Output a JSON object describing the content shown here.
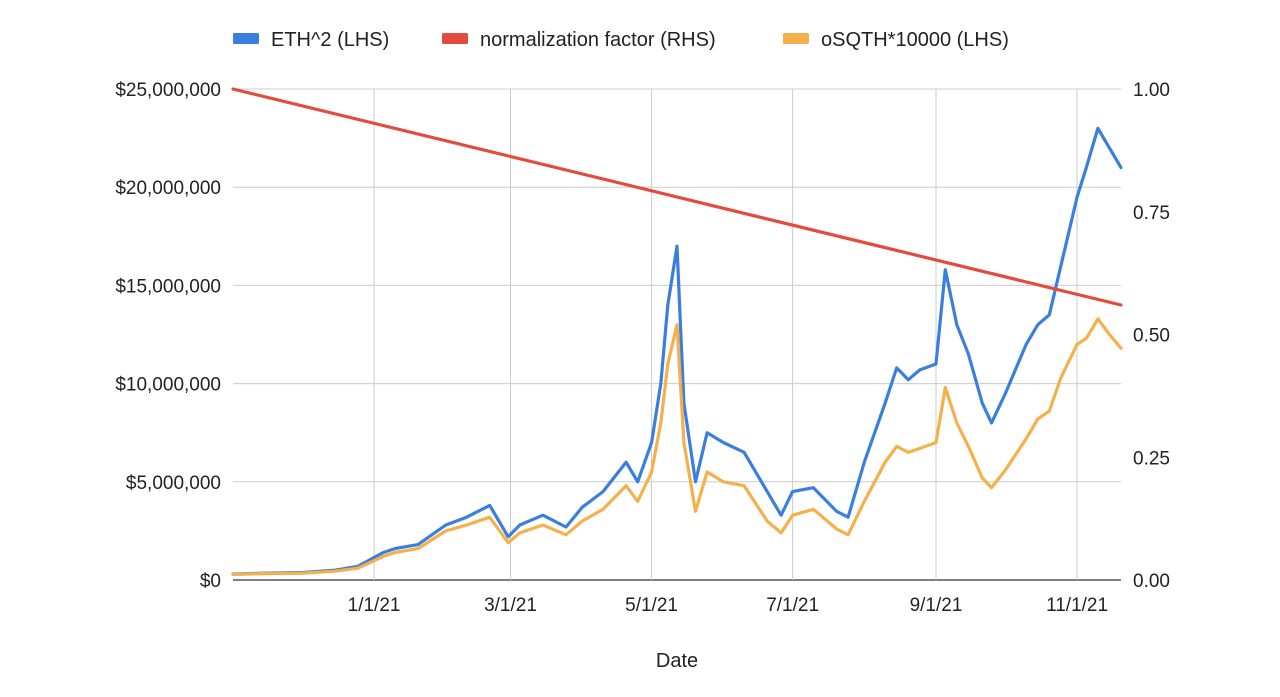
{
  "chart_data": {
    "type": "line",
    "xlabel": "Date",
    "x_range": [
      "2020-11-01",
      "2021-11-20"
    ],
    "x_ticks": [
      {
        "date": "2021-01-01",
        "label": "1/1/21"
      },
      {
        "date": "2021-03-01",
        "label": "3/1/21"
      },
      {
        "date": "2021-05-01",
        "label": "5/1/21"
      },
      {
        "date": "2021-07-01",
        "label": "7/1/21"
      },
      {
        "date": "2021-09-01",
        "label": "9/1/21"
      },
      {
        "date": "2021-11-01",
        "label": "11/1/21"
      }
    ],
    "y_left": {
      "range": [
        0,
        25000000
      ],
      "ticks": [
        0,
        5000000,
        10000000,
        15000000,
        20000000,
        25000000
      ],
      "tick_labels": [
        "$0",
        "$5,000,000",
        "$10,000,000",
        "$15,000,000",
        "$20,000,000",
        "$25,000,000"
      ]
    },
    "y_right": {
      "range": [
        0,
        1
      ],
      "ticks": [
        0,
        0.25,
        0.5,
        0.75,
        1
      ],
      "tick_labels": [
        "0.00",
        "0.25",
        "0.50",
        "0.75",
        "1.00"
      ]
    },
    "grid": true,
    "legend_position": "top",
    "series": [
      {
        "name": "ETH^2 (LHS)",
        "axis": "left",
        "color": "#3a7fdf",
        "x": [
          "2020-11-01",
          "2020-11-15",
          "2020-12-01",
          "2020-12-15",
          "2020-12-25",
          "2021-01-05",
          "2021-01-10",
          "2021-01-20",
          "2021-02-01",
          "2021-02-10",
          "2021-02-20",
          "2021-02-28",
          "2021-03-05",
          "2021-03-15",
          "2021-03-25",
          "2021-04-01",
          "2021-04-10",
          "2021-04-20",
          "2021-04-25",
          "2021-05-01",
          "2021-05-05",
          "2021-05-08",
          "2021-05-12",
          "2021-05-15",
          "2021-05-20",
          "2021-05-25",
          "2021-06-01",
          "2021-06-10",
          "2021-06-20",
          "2021-06-26",
          "2021-07-01",
          "2021-07-10",
          "2021-07-20",
          "2021-07-25",
          "2021-08-01",
          "2021-08-10",
          "2021-08-15",
          "2021-08-20",
          "2021-08-25",
          "2021-09-01",
          "2021-09-05",
          "2021-09-10",
          "2021-09-15",
          "2021-09-21",
          "2021-09-25",
          "2021-10-01",
          "2021-10-10",
          "2021-10-15",
          "2021-10-20",
          "2021-10-25",
          "2021-11-01",
          "2021-11-05",
          "2021-11-10",
          "2021-11-15",
          "2021-11-20"
        ],
        "y": [
          300000,
          350000,
          380000,
          500000,
          700000,
          1400000,
          1600000,
          1800000,
          2800000,
          3200000,
          3800000,
          2200000,
          2800000,
          3300000,
          2700000,
          3700000,
          4500000,
          6000000,
          5000000,
          7000000,
          10000000,
          14000000,
          17000000,
          9000000,
          5000000,
          7500000,
          7000000,
          6500000,
          4500000,
          3300000,
          4500000,
          4700000,
          3500000,
          3200000,
          6000000,
          9000000,
          10800000,
          10200000,
          10700000,
          11000000,
          15800000,
          13000000,
          11500000,
          9000000,
          8000000,
          9500000,
          12000000,
          13000000,
          13500000,
          16000000,
          19500000,
          21000000,
          23000000,
          22000000,
          21000000
        ]
      },
      {
        "name": "normalization factor (RHS)",
        "axis": "right",
        "color": "#e34c3c",
        "x": [
          "2020-11-01",
          "2021-11-20"
        ],
        "y": [
          1.0,
          0.56
        ]
      },
      {
        "name": "oSQTH*10000 (LHS)",
        "axis": "left",
        "color": "#f5b04b",
        "x": [
          "2020-11-01",
          "2020-11-15",
          "2020-12-01",
          "2020-12-15",
          "2020-12-25",
          "2021-01-05",
          "2021-01-10",
          "2021-01-20",
          "2021-02-01",
          "2021-02-10",
          "2021-02-20",
          "2021-02-28",
          "2021-03-05",
          "2021-03-15",
          "2021-03-25",
          "2021-04-01",
          "2021-04-10",
          "2021-04-20",
          "2021-04-25",
          "2021-05-01",
          "2021-05-05",
          "2021-05-08",
          "2021-05-12",
          "2021-05-15",
          "2021-05-20",
          "2021-05-25",
          "2021-06-01",
          "2021-06-10",
          "2021-06-20",
          "2021-06-26",
          "2021-07-01",
          "2021-07-10",
          "2021-07-20",
          "2021-07-25",
          "2021-08-01",
          "2021-08-10",
          "2021-08-15",
          "2021-08-20",
          "2021-08-25",
          "2021-09-01",
          "2021-09-05",
          "2021-09-10",
          "2021-09-15",
          "2021-09-21",
          "2021-09-25",
          "2021-10-01",
          "2021-10-10",
          "2021-10-15",
          "2021-10-20",
          "2021-10-25",
          "2021-11-01",
          "2021-11-05",
          "2021-11-10",
          "2021-11-15",
          "2021-11-20"
        ],
        "y": [
          280000,
          330000,
          350000,
          450000,
          600000,
          1200000,
          1400000,
          1600000,
          2500000,
          2800000,
          3200000,
          1900000,
          2400000,
          2800000,
          2300000,
          3000000,
          3600000,
          4800000,
          4000000,
          5500000,
          8000000,
          11000000,
          13000000,
          7000000,
          3500000,
          5500000,
          5000000,
          4800000,
          3000000,
          2400000,
          3300000,
          3600000,
          2600000,
          2300000,
          4000000,
          6000000,
          6800000,
          6500000,
          6700000,
          7000000,
          9800000,
          8000000,
          6800000,
          5200000,
          4700000,
          5600000,
          7200000,
          8200000,
          8600000,
          10300000,
          12000000,
          12300000,
          13300000,
          12500000,
          11800000
        ]
      }
    ]
  }
}
